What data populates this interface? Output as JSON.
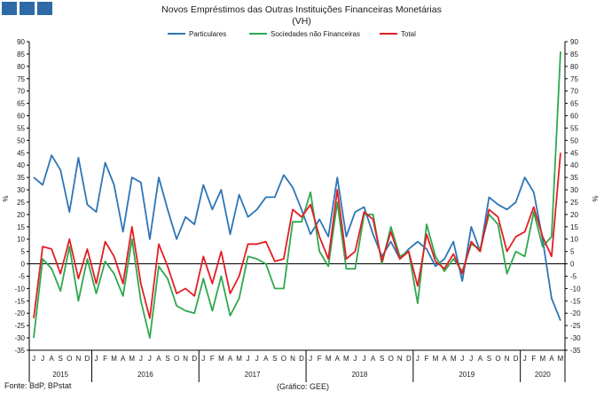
{
  "header": {
    "brand_squares": 3,
    "brand_color": "#2e6aa8"
  },
  "footer": {
    "source": "Fonte: BdP, BPstat",
    "credit": "(Gráfico: GEE)"
  },
  "chart_data": {
    "type": "line",
    "title": "Novos Empréstimos das Outras Instituições Financeiras Monetárias",
    "subtitle": "(VH)",
    "ylabel_left": "%",
    "ylabel_right": "%",
    "ylim": [
      -35,
      90
    ],
    "yticks": [
      -35,
      -30,
      -25,
      -20,
      -15,
      -10,
      -5,
      0,
      5,
      10,
      15,
      20,
      25,
      30,
      35,
      40,
      45,
      50,
      55,
      60,
      65,
      70,
      75,
      80,
      85,
      90
    ],
    "grid": false,
    "legend_position": "top",
    "x_month_labels": [
      "J",
      "J",
      "A",
      "S",
      "O",
      "N",
      "D",
      "J",
      "F",
      "M",
      "A",
      "M",
      "J",
      "J",
      "A",
      "S",
      "O",
      "N",
      "D",
      "J",
      "F",
      "M",
      "A",
      "M",
      "J",
      "J",
      "A",
      "S",
      "O",
      "N",
      "D",
      "J",
      "F",
      "M",
      "A",
      "M",
      "J",
      "J",
      "A",
      "S",
      "O",
      "N",
      "D",
      "J",
      "F",
      "M",
      "A",
      "M",
      "J",
      "J",
      "A",
      "S",
      "O",
      "N",
      "D",
      "J",
      "F",
      "M",
      "A",
      "M"
    ],
    "year_groups": [
      {
        "label": "2015",
        "count": 7
      },
      {
        "label": "2016",
        "count": 12
      },
      {
        "label": "2017",
        "count": 12
      },
      {
        "label": "2018",
        "count": 12
      },
      {
        "label": "2019",
        "count": 12
      },
      {
        "label": "2020",
        "count": 5
      }
    ],
    "series": [
      {
        "name": "Particulares",
        "color": "#2e75b6",
        "values": [
          35,
          32,
          44,
          38,
          21,
          43,
          24,
          21,
          41,
          32,
          13,
          35,
          33,
          10,
          35,
          22,
          10,
          19,
          16,
          32,
          22,
          30,
          12,
          28,
          19,
          22,
          27,
          27,
          36,
          31,
          22,
          12,
          18,
          11,
          35,
          11,
          21,
          23,
          12,
          3,
          9,
          2,
          6,
          9,
          6,
          -1,
          2,
          9,
          -7,
          15,
          5,
          27,
          24,
          22,
          25,
          35,
          29,
          10,
          -14,
          -23
        ]
      },
      {
        "name": "Sociedades não Financeiras",
        "color": "#2ea84e",
        "values": [
          -30,
          2,
          -2,
          -11,
          7,
          -15,
          2,
          -12,
          1,
          -4,
          -13,
          10,
          -15,
          -30,
          -1,
          -6,
          -17,
          -19,
          -20,
          -6,
          -19,
          -5,
          -21,
          -14,
          3,
          2,
          0,
          -10,
          -10,
          17,
          17,
          29,
          5,
          -1,
          25,
          -2,
          -2,
          20,
          20,
          0,
          15,
          3,
          5,
          -16,
          16,
          3,
          -3,
          2,
          -3,
          8,
          6,
          20,
          16,
          -4,
          5,
          3,
          21,
          7,
          11,
          86
        ]
      },
      {
        "name": "Total",
        "color": "#e31e24",
        "values": [
          -22,
          7,
          6,
          -4,
          10,
          -6,
          6,
          -8,
          9,
          3,
          -8,
          15,
          -8,
          -22,
          8,
          -1,
          -12,
          -10,
          -13,
          3,
          -8,
          5,
          -12,
          -5,
          8,
          8,
          9,
          1,
          2,
          22,
          19,
          24,
          11,
          2,
          30,
          2,
          5,
          21,
          18,
          1,
          13,
          2,
          5,
          -9,
          12,
          1,
          -2,
          4,
          -4,
          9,
          5,
          22,
          19,
          5,
          11,
          13,
          23,
          11,
          3,
          45
        ]
      }
    ]
  }
}
